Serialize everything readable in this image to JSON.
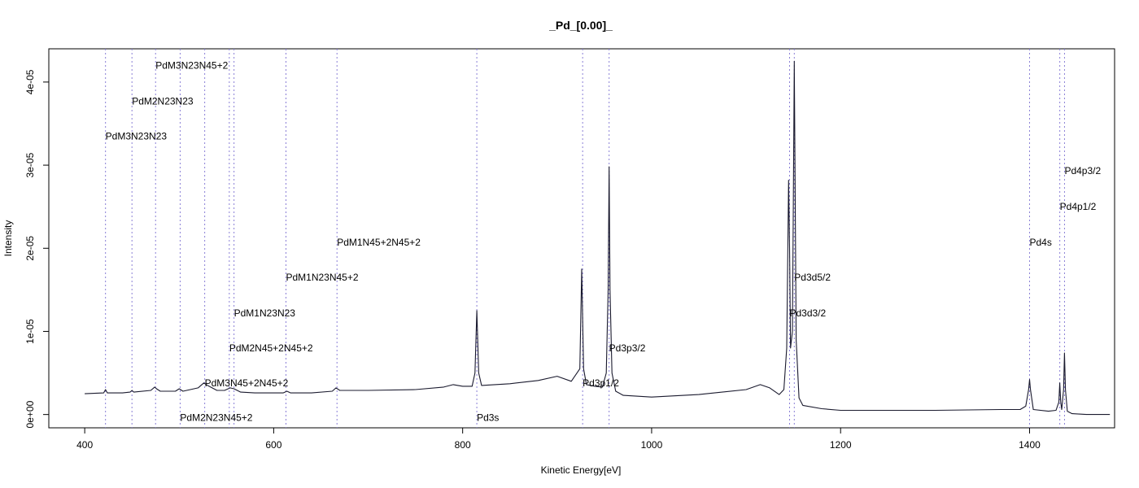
{
  "chart_data": {
    "type": "line",
    "title": "_Pd_[0.00]_",
    "xlabel": "Kinetic Energy[eV]",
    "ylabel": "Intensity",
    "xlim": [
      362,
      1490
    ],
    "ylim": [
      -1.6e-06,
      4.4e-05
    ],
    "x_ticks": [
      400,
      600,
      800,
      1000,
      1200,
      1400
    ],
    "x_tick_labels": [
      "400",
      "600",
      "800",
      "1000",
      "1200",
      "1400"
    ],
    "y_ticks": [
      0,
      1e-05,
      2e-05,
      3e-05,
      4e-05
    ],
    "y_tick_labels": [
      "0e+00",
      "1e-05",
      "2e-05",
      "3e-05",
      "4e-05"
    ],
    "grid": false,
    "line_color": "#1a1a2e",
    "marker_line_color": "#8a7fd6",
    "series": [
      {
        "x": [
          400,
          420,
          422,
          424,
          440,
          448,
          450,
          452,
          470,
          474,
          476,
          480,
          496,
          500,
          504,
          520,
          526,
          530,
          540,
          548,
          554,
          558,
          565,
          580,
          600,
          610,
          614,
          618,
          640,
          662,
          666,
          670,
          700,
          750,
          780,
          790,
          800,
          810,
          813,
          815,
          817,
          820,
          850,
          880,
          900,
          915,
          924,
          926,
          928,
          931,
          940,
          948,
          952,
          954,
          955,
          956,
          958,
          962,
          970,
          1000,
          1050,
          1100,
          1115,
          1125,
          1135,
          1140,
          1143,
          1145,
          1146,
          1147,
          1149,
          1150,
          1151,
          1152,
          1153,
          1156,
          1160,
          1180,
          1200,
          1300,
          1370,
          1390,
          1396,
          1399,
          1400,
          1401,
          1404,
          1420,
          1428,
          1431,
          1432,
          1433,
          1434,
          1436,
          1437,
          1438,
          1440,
          1445,
          1460,
          1485
        ],
        "y": [
          2.5e-06,
          2.6e-06,
          3e-06,
          2.6e-06,
          2.6e-06,
          2.7e-06,
          2.9e-06,
          2.7e-06,
          2.9e-06,
          3.3e-06,
          3.1e-06,
          2.8e-06,
          2.8e-06,
          3.1e-06,
          2.8e-06,
          3.2e-06,
          3.8e-06,
          3.5e-06,
          2.9e-06,
          2.9e-06,
          3.2e-06,
          3.1e-06,
          2.7e-06,
          2.6e-06,
          2.6e-06,
          2.6e-06,
          2.8e-06,
          2.6e-06,
          2.6e-06,
          2.8e-06,
          3.2e-06,
          2.9e-06,
          2.9e-06,
          3e-06,
          3.3e-06,
          3.6e-06,
          3.4e-06,
          3.4e-06,
          5e-06,
          1.25e-05,
          5e-06,
          3.5e-06,
          3.7e-06,
          4.1e-06,
          4.6e-06,
          4e-06,
          5.5e-06,
          1.75e-05,
          5.5e-06,
          3.6e-06,
          3.4e-06,
          3.3e-06,
          5e-06,
          1.5e-05,
          2.98e-05,
          1.5e-05,
          5e-06,
          2.8e-06,
          2.3e-06,
          2.1e-06,
          2.4e-06,
          3e-06,
          3.6e-06,
          3.2e-06,
          2.4e-06,
          3e-06,
          8e-06,
          2.82e-05,
          2e-05,
          8e-06,
          1e-05,
          2.5e-05,
          4.25e-05,
          2.5e-05,
          9e-06,
          2e-06,
          1.1e-06,
          7e-07,
          5e-07,
          5e-07,
          6e-07,
          6e-07,
          1e-06,
          3e-06,
          4.2e-06,
          3e-06,
          6e-07,
          4e-07,
          5e-07,
          1.5e-06,
          3.8e-06,
          1.5e-06,
          6e-07,
          3e-06,
          7.4e-06,
          3e-06,
          4e-07,
          1e-07,
          0.0,
          0.0
        ]
      }
    ],
    "annotations": [
      {
        "label": "PdM3N23N23",
        "energy": 422,
        "y": 3.35e-05
      },
      {
        "label": "PdM2N23N23",
        "energy": 450,
        "y": 3.77e-05
      },
      {
        "label": "PdM3N23N45+2",
        "energy": 475,
        "y": 4.2e-05
      },
      {
        "label": "PdM2N23N45+2",
        "energy": 501,
        "y": -4e-07
      },
      {
        "label": "PdM3N45+2N45+2",
        "energy": 527,
        "y": 3.8e-06
      },
      {
        "label": "PdM2N45+2N45+2",
        "energy": 553,
        "y": 8e-06
      },
      {
        "label": "PdM1N23N23",
        "energy": 558,
        "y": 1.22e-05
      },
      {
        "label": "PdM1N23N45+2",
        "energy": 613,
        "y": 1.65e-05
      },
      {
        "label": "PdM1N45+2N45+2",
        "energy": 667,
        "y": 2.07e-05
      },
      {
        "label": "Pd3s",
        "energy": 815,
        "y": -4e-07
      },
      {
        "label": "Pd3p1/2",
        "energy": 927,
        "y": 3.8e-06
      },
      {
        "label": "Pd3p3/2",
        "energy": 955,
        "y": 8e-06
      },
      {
        "label": "Pd3d3/2",
        "energy": 1146,
        "y": 1.22e-05
      },
      {
        "label": "Pd3d5/2",
        "energy": 1151,
        "y": 1.65e-05
      },
      {
        "label": "Pd4s",
        "energy": 1400,
        "y": 2.07e-05
      },
      {
        "label": "Pd4p1/2",
        "energy": 1432,
        "y": 2.5e-05
      },
      {
        "label": "Pd4p3/2",
        "energy": 1437,
        "y": 2.93e-05
      }
    ]
  }
}
